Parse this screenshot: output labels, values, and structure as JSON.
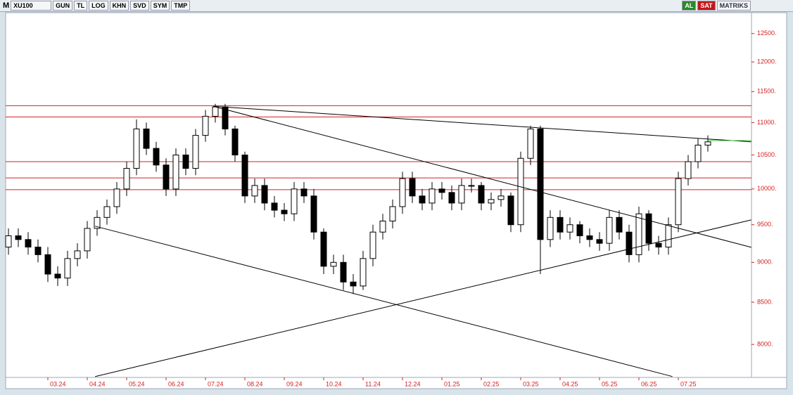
{
  "toolbar": {
    "logo": "M",
    "symbol": "XU100",
    "buttons": [
      "GUN",
      "TL",
      "LOG",
      "KHN",
      "SVD",
      "SYM",
      "TMP"
    ],
    "buy": "AL",
    "sell": "SAT",
    "brand": "MATRIKS"
  },
  "chart_data": {
    "type": "candlestick",
    "log_scale": true,
    "categories": [
      null,
      null,
      null,
      null,
      "03.24",
      null,
      null,
      null,
      "04.24",
      null,
      null,
      null,
      "05.24",
      null,
      null,
      null,
      "06.24",
      null,
      null,
      null,
      "07.24",
      null,
      null,
      null,
      "08.24",
      null,
      null,
      null,
      "09.24",
      null,
      null,
      null,
      "10.24",
      null,
      null,
      null,
      "11.24",
      null,
      null,
      null,
      "12.24",
      null,
      null,
      null,
      "01.25",
      null,
      null,
      null,
      "02.25",
      null,
      null,
      null,
      "03.25",
      null,
      null,
      null,
      "04.25",
      null,
      null,
      null,
      "05.25",
      null,
      null,
      null,
      "06.25",
      null,
      null,
      null,
      "07.25",
      null,
      null,
      null
    ],
    "open": [
      9200,
      9350,
      9300,
      9200,
      9100,
      8850,
      8800,
      9050,
      9150,
      9450,
      9600,
      9750,
      10000,
      10300,
      10900,
      10600,
      10350,
      10000,
      10500,
      10300,
      10800,
      11100,
      11250,
      10900,
      10500,
      9900,
      10050,
      9800,
      9700,
      9650,
      10000,
      9900,
      9400,
      8950,
      9000,
      8750,
      8700,
      9050,
      9400,
      9550,
      9750,
      10150,
      9900,
      9800,
      10000,
      9950,
      9800,
      10050,
      10050,
      9800,
      9850,
      9900,
      9500,
      10450,
      10900,
      9300,
      9600,
      9400,
      9500,
      9350,
      9300,
      9250,
      9600,
      9400,
      9100,
      9650,
      9250,
      9200,
      9500,
      10150,
      10400,
      10650
    ],
    "high": [
      9450,
      9450,
      9400,
      9300,
      9200,
      8950,
      9150,
      9250,
      9550,
      9700,
      9850,
      10100,
      10400,
      11050,
      11000,
      10700,
      10450,
      10600,
      10600,
      10900,
      11200,
      11300,
      11300,
      10950,
      10550,
      10150,
      10150,
      9900,
      9800,
      10100,
      10100,
      10000,
      9450,
      9100,
      9100,
      8850,
      9150,
      9500,
      9650,
      9850,
      10250,
      10250,
      10000,
      10100,
      10100,
      10050,
      10150,
      10150,
      10100,
      9950,
      10000,
      9950,
      10550,
      10950,
      10950,
      9700,
      9700,
      9600,
      9550,
      9450,
      9400,
      9700,
      9700,
      9500,
      9750,
      9700,
      9350,
      9600,
      10250,
      10500,
      10750,
      10800
    ],
    "low": [
      9100,
      9200,
      9100,
      9000,
      8750,
      8700,
      8700,
      8950,
      9050,
      9350,
      9500,
      9650,
      9900,
      10200,
      10500,
      10250,
      9900,
      9900,
      10200,
      10200,
      10700,
      11000,
      10800,
      10400,
      9800,
      9800,
      9700,
      9600,
      9550,
      9550,
      9800,
      9300,
      8850,
      8850,
      8650,
      8600,
      8650,
      8950,
      9300,
      9450,
      9650,
      9800,
      9700,
      9700,
      9850,
      9700,
      9700,
      9950,
      9700,
      9700,
      9750,
      9400,
      9400,
      10350,
      8850,
      9200,
      9300,
      9300,
      9250,
      9200,
      9150,
      9150,
      9300,
      9000,
      9000,
      9150,
      9100,
      9100,
      9400,
      10050,
      10300,
      10550
    ],
    "close": [
      9350,
      9300,
      9200,
      9100,
      8850,
      8800,
      9050,
      9150,
      9450,
      9600,
      9750,
      10000,
      10300,
      10900,
      10600,
      10350,
      10000,
      10500,
      10300,
      10800,
      11100,
      11250,
      10900,
      10500,
      9900,
      10050,
      9800,
      9700,
      9650,
      10000,
      9900,
      9400,
      8950,
      9000,
      8750,
      8700,
      9050,
      9400,
      9550,
      9750,
      10150,
      9900,
      9800,
      10000,
      9950,
      9800,
      10050,
      10050,
      9800,
      9850,
      9900,
      9500,
      10450,
      10900,
      9300,
      9600,
      9400,
      9500,
      9350,
      9300,
      9250,
      9600,
      9400,
      9100,
      9650,
      9250,
      9200,
      9500,
      10150,
      10400,
      10650,
      10700
    ],
    "color": "#000000",
    "ylim": [
      7630,
      12880
    ],
    "yticks": [
      {
        "value": 8000,
        "label": "8000."
      },
      {
        "value": 8500,
        "label": "8500."
      },
      {
        "value": 9000,
        "label": "9000."
      },
      {
        "value": 9500,
        "label": "9500."
      },
      {
        "value": 10000,
        "label": "10000."
      },
      {
        "value": 10500,
        "label": "10500."
      },
      {
        "value": 11000,
        "label": "11000."
      },
      {
        "value": 11500,
        "label": "11500."
      },
      {
        "value": 12000,
        "label": "12000."
      },
      {
        "value": 12500,
        "label": "12500."
      }
    ],
    "hlines": [
      11270,
      11090,
      10400,
      10160,
      9990
    ],
    "hline_color": "#d42020",
    "lines": [
      {
        "x": [
          20.8,
          75.4
        ],
        "y": [
          11260,
          10700
        ],
        "color": "#000000"
      },
      {
        "x": [
          20.8,
          75.4
        ],
        "y": [
          11260,
          9197
        ],
        "color": "#000000"
      },
      {
        "x": [
          8.8,
          67.4
        ],
        "y": [
          9480,
          7640
        ],
        "color": "#000000"
      },
      {
        "x": [
          8.8,
          75.4
        ],
        "y": [
          7640,
          9566
        ],
        "color": "#000000"
      },
      {
        "x": [
          70.9,
          75.4
        ],
        "y": [
          10720,
          10720
        ],
        "color": "#3cbf3c"
      }
    ],
    "axis_color": "#d42020"
  }
}
